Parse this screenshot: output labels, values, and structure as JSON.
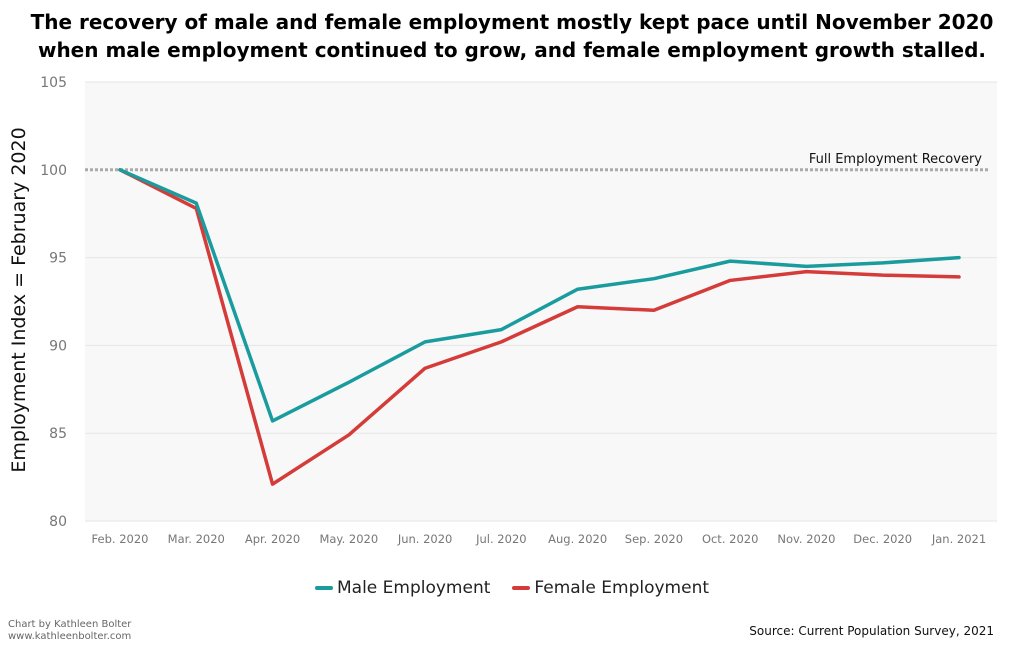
{
  "title_line1": "The recovery of male and female employment mostly kept pace until November 2020",
  "title_line2": "when male employment continued to grow, and female employment growth stalled.",
  "credit_line1": "Chart by Kathleen Bolter",
  "credit_line2": "www.kathleenbolter.com",
  "source": "Source: Current Population Survey, 2021",
  "colors": {
    "male": "#1a9c9e",
    "female": "#d43c3a",
    "plot_bg": "#f8f8f8",
    "reference": "#aaaaaa"
  },
  "chart_data": {
    "type": "line",
    "title": "The recovery of male and female employment mostly kept pace until November 2020 when male employment continued to grow, and female employment growth stalled.",
    "xlabel": "",
    "ylabel": "Employment Index = February 2020",
    "ylim": [
      80,
      105
    ],
    "yticks": [
      80,
      85,
      90,
      95,
      100,
      105
    ],
    "categories": [
      "Feb. 2020",
      "Mar. 2020",
      "Apr. 2020",
      "May. 2020",
      "Jun. 2020",
      "Jul. 2020",
      "Aug. 2020",
      "Sep. 2020",
      "Oct. 2020",
      "Nov. 2020",
      "Dec. 2020",
      "Jan. 2021"
    ],
    "series": [
      {
        "name": "Male Employment",
        "values": [
          100,
          98.1,
          85.7,
          87.9,
          90.2,
          90.9,
          93.2,
          93.8,
          94.8,
          94.5,
          94.7,
          95.0
        ]
      },
      {
        "name": "Female Employment",
        "values": [
          100,
          97.8,
          82.1,
          84.9,
          88.7,
          90.2,
          92.2,
          92.0,
          93.7,
          94.2,
          94.0,
          93.9
        ]
      }
    ],
    "reference_line": {
      "value": 100,
      "label": "Full Employment Recovery"
    },
    "grid": true,
    "legend": "bottom"
  }
}
